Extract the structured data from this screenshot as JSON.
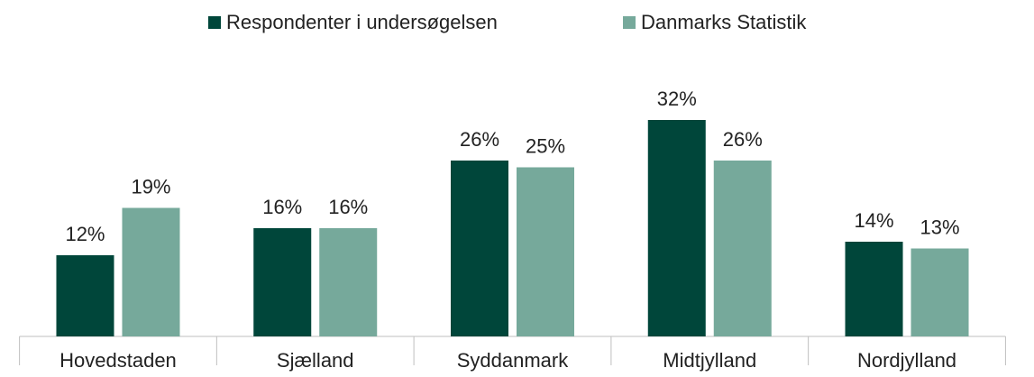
{
  "chart_data": {
    "type": "bar",
    "categories": [
      "Hovedstaden",
      "Sjælland",
      "Syddanmark",
      "Midtjylland",
      "Nordjylland"
    ],
    "series": [
      {
        "name": "Respondenter i undersøgelsen",
        "color": "#00463a",
        "values": [
          12,
          16,
          26,
          32,
          14
        ],
        "value_labels": [
          "12%",
          "16%",
          "26%",
          "32%",
          "14%"
        ]
      },
      {
        "name": "Danmarks Statistik",
        "color": "#76a99b",
        "values": [
          19,
          16,
          25,
          26,
          13
        ],
        "value_labels": [
          "19%",
          "16%",
          "25%",
          "26%",
          "13%"
        ]
      }
    ],
    "ylim": [
      0,
      35
    ],
    "legend": "top"
  }
}
